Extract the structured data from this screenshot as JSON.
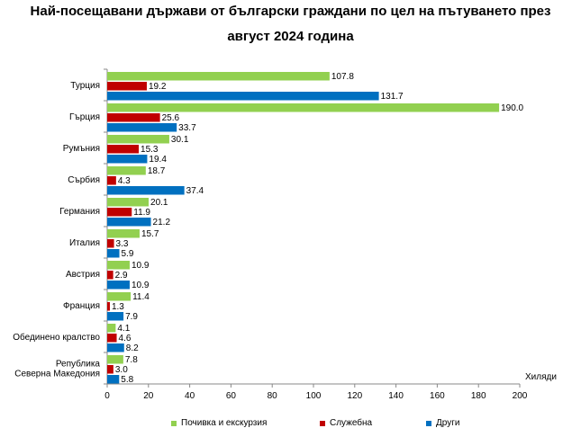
{
  "title_line1": "Най-посещавани държави от български граждани по цел на пътуването през",
  "title_line2": "август 2024 година",
  "chart_data": {
    "type": "bar",
    "orientation": "horizontal",
    "categories": [
      "Турция",
      "Гърция",
      "Румъния",
      "Сърбия",
      "Германия",
      "Италия",
      "Австрия",
      "Франция",
      "Обединено кралство",
      "Република Северна Македония"
    ],
    "category_lines": [
      [
        "Турция"
      ],
      [
        "Гърция"
      ],
      [
        "Румъния"
      ],
      [
        "Сърбия"
      ],
      [
        "Германия"
      ],
      [
        "Италия"
      ],
      [
        "Австрия"
      ],
      [
        "Франция"
      ],
      [
        "Обединено кралство"
      ],
      [
        "Република",
        "Северна Македония"
      ]
    ],
    "series": [
      {
        "name": "Почивка и екскурзия",
        "color": "#92D050",
        "values": [
          107.8,
          190.0,
          30.1,
          18.7,
          20.1,
          15.7,
          10.9,
          11.4,
          4.1,
          7.8
        ]
      },
      {
        "name": "Служебна",
        "color": "#C00000",
        "values": [
          19.2,
          25.6,
          15.3,
          4.3,
          11.9,
          3.3,
          2.9,
          1.3,
          4.6,
          3.0
        ]
      },
      {
        "name": "Други",
        "color": "#0070C0",
        "values": [
          131.7,
          33.7,
          19.4,
          37.4,
          21.2,
          5.9,
          10.9,
          7.9,
          8.2,
          5.8
        ]
      }
    ],
    "value_labels": [
      [
        "107.8",
        "190.0",
        "30.1",
        "18.7",
        "20.1",
        "15.7",
        "10.9",
        "11.4",
        "4.1",
        "7.8"
      ],
      [
        "19.2",
        "25.6",
        "15.3",
        "4.3",
        "11.9",
        "3.3",
        "2.9",
        "1.3",
        "4.6",
        "3.0"
      ],
      [
        "131.7",
        "33.7",
        "19.4",
        "37.4",
        "21.2",
        "5.9",
        "10.9",
        "7.9",
        "8.2",
        "5.8"
      ]
    ],
    "x_ticks": [
      "0",
      "20",
      "40",
      "60",
      "80",
      "100",
      "120",
      "140",
      "160",
      "180",
      "200"
    ],
    "xlim": [
      0,
      200
    ],
    "unit_label": "Хиляди",
    "grid": false,
    "legend_position": "bottom"
  }
}
